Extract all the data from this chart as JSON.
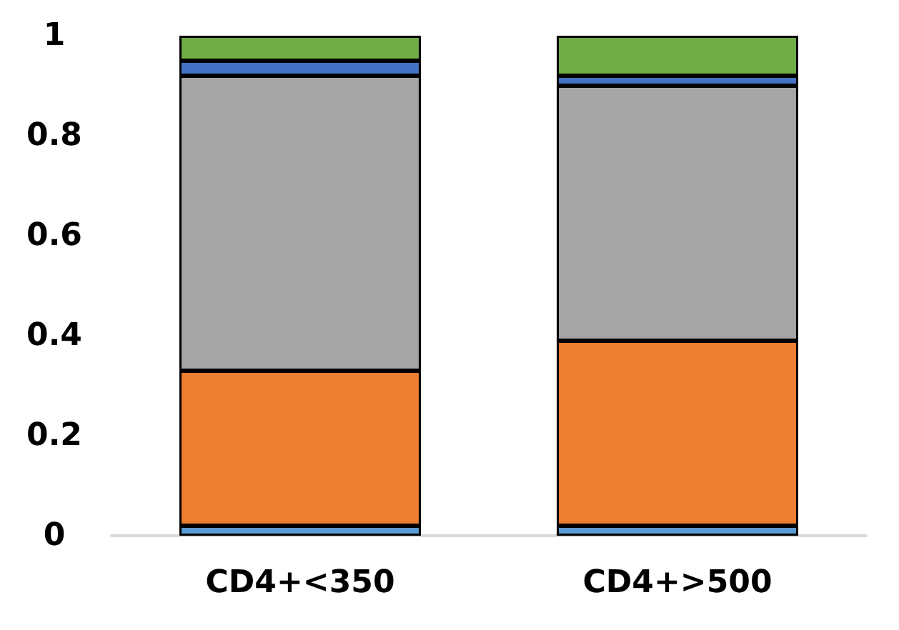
{
  "chart_data": {
    "type": "bar",
    "stacked": true,
    "categories": [
      "CD4+<350",
      "CD4+>500"
    ],
    "series": [
      {
        "color": "#5b9bd5",
        "values": [
          0.02,
          0.02
        ]
      },
      {
        "color": "#ed7d31",
        "values": [
          0.31,
          0.37
        ]
      },
      {
        "color": "#a5a5a5",
        "values": [
          0.59,
          0.51
        ]
      },
      {
        "color": "#4472c4",
        "values": [
          0.03,
          0.02
        ]
      },
      {
        "color": "#70ad47",
        "values": [
          0.05,
          0.08
        ]
      }
    ],
    "ylim": [
      0,
      1
    ],
    "yticks": [
      0,
      0.2,
      0.4,
      0.6,
      0.8,
      1
    ],
    "grid": false,
    "legend": false
  }
}
